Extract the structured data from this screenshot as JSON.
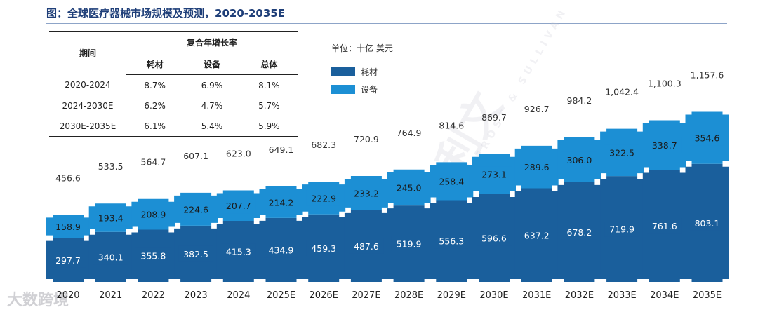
{
  "title": "图：全球医疗器械市场规模及预测，2020-2035E",
  "unit_label": "单位：十亿 美元",
  "colors": {
    "consumables": "#1a5f9c",
    "equipment": "#1c8fd4",
    "title": "#1f3f79"
  },
  "cagr_table": {
    "period_header": "期间",
    "group_header": "复合年增长率",
    "col_headers": [
      "耗材",
      "设备",
      "总体"
    ],
    "rows": [
      {
        "period": "2020-2024",
        "values": [
          "8.7%",
          "6.9%",
          "8.1%"
        ]
      },
      {
        "period": "2024-2030E",
        "values": [
          "6.2%",
          "4.7%",
          "5.7%"
        ]
      },
      {
        "period": "2030E-2035E",
        "values": [
          "6.1%",
          "5.4%",
          "5.9%"
        ]
      }
    ]
  },
  "watermark": {
    "cn": "沙利文",
    "en": "FROST & SULLIVAN",
    "source": "大数跨境"
  },
  "chart_data": {
    "type": "bar",
    "stacked": true,
    "title": "全球医疗器械市场规模及预测，2020-2035E",
    "unit": "单位：十亿 美元",
    "legend_position": "right-of-table",
    "categories": [
      "2020",
      "2021",
      "2022",
      "2023",
      "2024",
      "2025E",
      "2026E",
      "2027E",
      "2028E",
      "2029E",
      "2030E",
      "2031E",
      "2032E",
      "2033E",
      "2034E",
      "2035E"
    ],
    "series": [
      {
        "name": "耗材",
        "color": "#1a5f9c",
        "values": [
          297.7,
          340.1,
          355.8,
          382.5,
          415.3,
          434.9,
          459.3,
          487.6,
          519.9,
          556.3,
          596.6,
          637.2,
          678.2,
          719.9,
          761.6,
          803.1
        ]
      },
      {
        "name": "设备",
        "color": "#1c8fd4",
        "values": [
          158.9,
          193.4,
          208.9,
          224.6,
          207.7,
          214.2,
          222.9,
          233.2,
          245.0,
          258.4,
          273.1,
          289.6,
          306.0,
          322.5,
          338.7,
          354.6
        ]
      }
    ],
    "totals": [
      "456.6",
      "533.5",
      "564.7",
      "607.1",
      "623.0",
      "649.1",
      "682.3",
      "720.9",
      "764.9",
      "814.6",
      "869.7",
      "926.7",
      "984.2",
      "1,042.4",
      "1,100.3",
      "1,157.6"
    ],
    "ylim": [
      0,
      1200
    ],
    "grid": false
  }
}
